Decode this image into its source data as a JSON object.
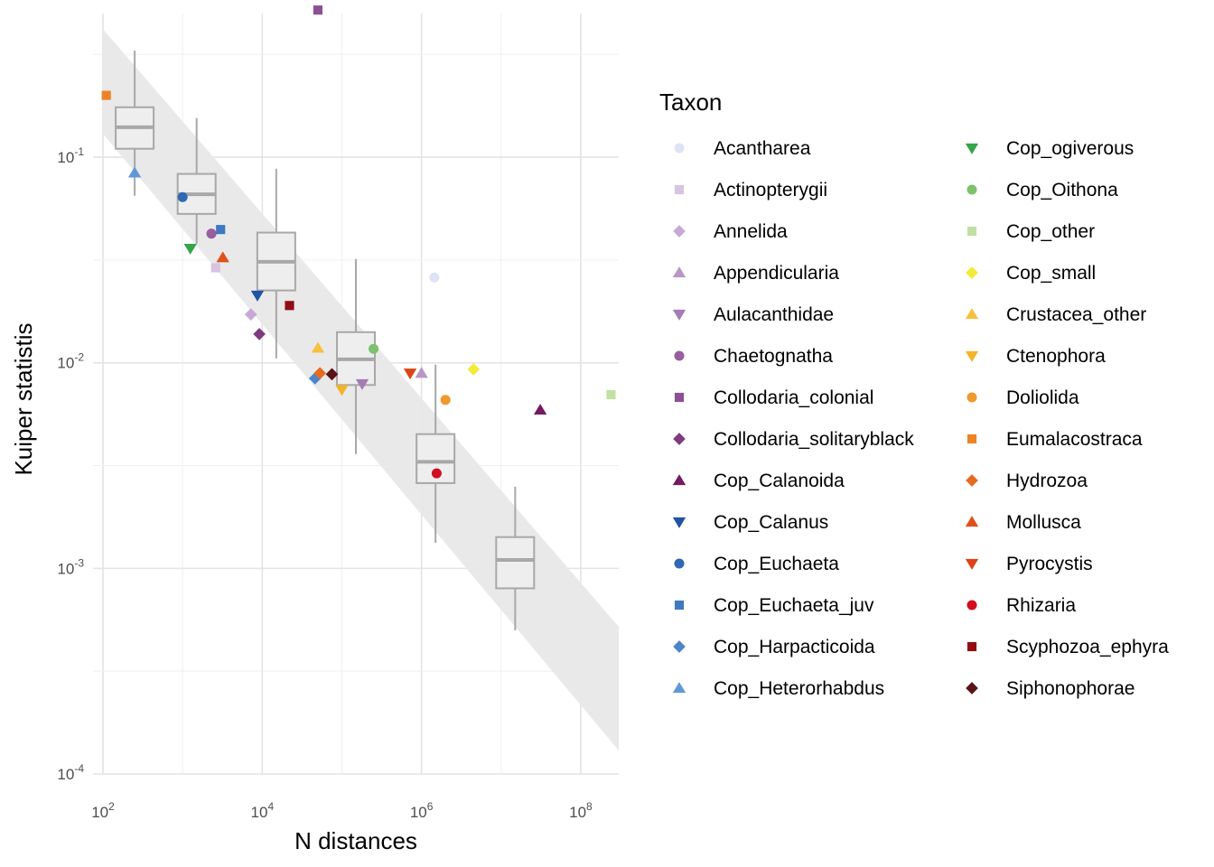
{
  "chart_data": {
    "type": "scatter",
    "xlabel": "N distances",
    "ylabel": "Kuiper statistis",
    "x_scale": "log10",
    "y_scale": "log10",
    "xlim": [
      75,
      300000000
    ],
    "ylim": [
      0.0001,
      0.5
    ],
    "x_ticks": [
      {
        "value": 100,
        "base": "10",
        "exp": "2"
      },
      {
        "value": 10000,
        "base": "10",
        "exp": "4"
      },
      {
        "value": 1000000,
        "base": "10",
        "exp": "6"
      },
      {
        "value": 100000000,
        "base": "10",
        "exp": "8"
      }
    ],
    "y_ticks": [
      {
        "value": 0.1,
        "base": "10",
        "exp": "-1"
      },
      {
        "value": 0.01,
        "base": "10",
        "exp": "-2"
      },
      {
        "value": 0.001,
        "base": "10",
        "exp": "-3"
      },
      {
        "value": 0.0001,
        "base": "10",
        "exp": "-4"
      }
    ],
    "grid": true,
    "legend": {
      "title": "Taxon",
      "placement": "right",
      "columns": 2
    },
    "ribbon": {
      "x": [
        100,
        300000000
      ],
      "upper": [
        0.42,
        0.00052
      ],
      "lower": [
        0.13,
        0.00013
      ],
      "color": "#e8e8e8"
    },
    "boxplots": [
      {
        "x": 250,
        "whisker_low": 0.065,
        "q1": 0.11,
        "median": 0.14,
        "q3": 0.175,
        "whisker_high": 0.33
      },
      {
        "x": 1500,
        "whisker_low": 0.038,
        "q1": 0.053,
        "median": 0.066,
        "q3": 0.083,
        "whisker_high": 0.155
      },
      {
        "x": 15000,
        "whisker_low": 0.0105,
        "q1": 0.0225,
        "median": 0.031,
        "q3": 0.043,
        "whisker_high": 0.088
      },
      {
        "x": 150000,
        "whisker_low": 0.0036,
        "q1": 0.0078,
        "median": 0.0104,
        "q3": 0.0141,
        "whisker_high": 0.032
      },
      {
        "x": 1500000,
        "whisker_low": 0.00133,
        "q1": 0.0026,
        "median": 0.0033,
        "q3": 0.0045,
        "whisker_high": 0.0098
      },
      {
        "x": 15000000,
        "whisker_low": 0.0005,
        "q1": 0.0008,
        "median": 0.0011,
        "q3": 0.00142,
        "whisker_high": 0.0025
      }
    ],
    "series": [
      {
        "name": "Acantharea",
        "shape": "circle",
        "color": "#dde3f5",
        "x": 1450000,
        "y": 0.026
      },
      {
        "name": "Actinopterygii",
        "shape": "square",
        "color": "#d7c3e2",
        "x": 2600,
        "y": 0.029
      },
      {
        "name": "Annelida",
        "shape": "diamond",
        "color": "#c7a8d6",
        "x": 7200,
        "y": 0.0172
      },
      {
        "name": "Appendicularia",
        "shape": "triangle-up",
        "color": "#b996c5",
        "x": 1000000,
        "y": 0.0089
      },
      {
        "name": "Aulacanthidae",
        "shape": "triangle-down",
        "color": "#a57cb5",
        "x": 180000,
        "y": 0.0079
      },
      {
        "name": "Chaetognatha",
        "shape": "circle",
        "color": "#975f9f",
        "x": 2300,
        "y": 0.0425
      },
      {
        "name": "Collodaria_colonial",
        "shape": "square",
        "color": "#8d4f95",
        "x": 50000,
        "y": 0.52
      },
      {
        "name": "Collodaria_solitaryblack",
        "shape": "diamond",
        "color": "#7f3a80",
        "x": 9200,
        "y": 0.0138
      },
      {
        "name": "Cop_Calanoida",
        "shape": "triangle-up",
        "color": "#741a5f",
        "x": 31000000,
        "y": 0.0059
      },
      {
        "name": "Cop_Calanus",
        "shape": "triangle-down",
        "color": "#1f53a3",
        "x": 8700,
        "y": 0.0213
      },
      {
        "name": "Cop_Euchaeta",
        "shape": "circle",
        "color": "#2f68b3",
        "x": 1000,
        "y": 0.064
      },
      {
        "name": "Cop_Euchaeta_juv",
        "shape": "square",
        "color": "#3f79c0",
        "x": 3000,
        "y": 0.0445
      },
      {
        "name": "Cop_Harpacticoida",
        "shape": "diamond",
        "color": "#4d85cb",
        "x": 46000,
        "y": 0.0084
      },
      {
        "name": "Cop_Heterorhabdus",
        "shape": "triangle-up",
        "color": "#5f98d6",
        "x": 250,
        "y": 0.084
      },
      {
        "name": "Cop_ogiverous",
        "shape": "triangle-down",
        "color": "#35a54a",
        "x": 1250,
        "y": 0.036
      },
      {
        "name": "Cop_Oithona",
        "shape": "circle",
        "color": "#7fc06e",
        "x": 250000,
        "y": 0.0117
      },
      {
        "name": "Cop_other",
        "shape": "square",
        "color": "#c2e0a3",
        "x": 240000000,
        "y": 0.007
      },
      {
        "name": "Cop_small",
        "shape": "diamond",
        "color": "#f4ea3a",
        "x": 4500000,
        "y": 0.0093
      },
      {
        "name": "Crustacea_other",
        "shape": "triangle-up",
        "color": "#f6c13c",
        "x": 50000,
        "y": 0.0118
      },
      {
        "name": "Ctenophora",
        "shape": "triangle-down",
        "color": "#f3b32a",
        "x": 100000,
        "y": 0.0074
      },
      {
        "name": "Doliolida",
        "shape": "circle",
        "color": "#f0992e",
        "x": 2000000,
        "y": 0.0066
      },
      {
        "name": "Eumalacostraca",
        "shape": "square",
        "color": "#ec8327",
        "x": 110,
        "y": 0.2
      },
      {
        "name": "Hydrozoa",
        "shape": "diamond",
        "color": "#e66b21",
        "x": 53000,
        "y": 0.0089
      },
      {
        "name": "Mollusca",
        "shape": "triangle-up",
        "color": "#df501c",
        "x": 3200,
        "y": 0.0325
      },
      {
        "name": "Pyrocystis",
        "shape": "triangle-down",
        "color": "#dc4418",
        "x": 720000,
        "y": 0.0089
      },
      {
        "name": "Rhizaria",
        "shape": "circle",
        "color": "#cf1020",
        "x": 1550000,
        "y": 0.0029
      },
      {
        "name": "Scyphozoa_ephyra",
        "shape": "square",
        "color": "#920c13",
        "x": 22000,
        "y": 0.019
      },
      {
        "name": "Siphonophorae",
        "shape": "diamond",
        "color": "#5a1316",
        "x": 75000,
        "y": 0.0088
      }
    ]
  }
}
